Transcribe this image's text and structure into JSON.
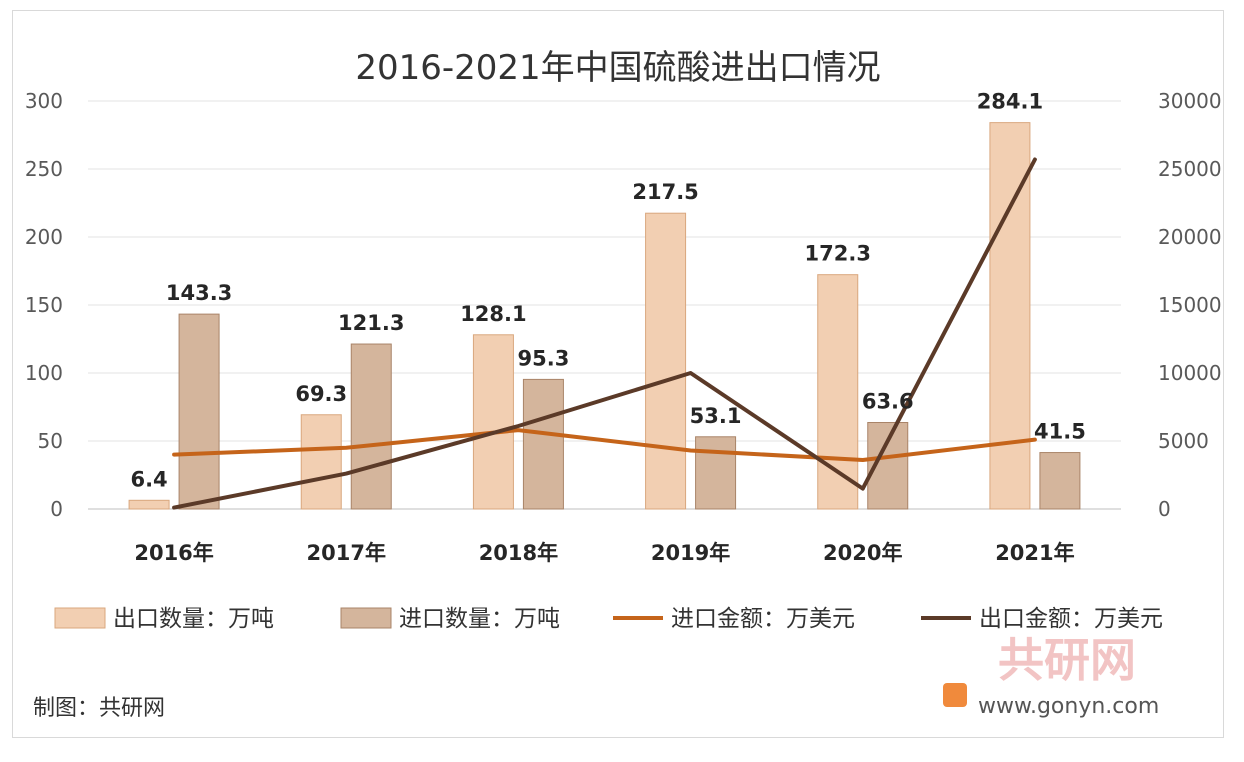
{
  "chart_data": {
    "type": "bar",
    "title": "2016-2021年中国硫酸进出口情况",
    "categories": [
      "2016年",
      "2017年",
      "2018年",
      "2019年",
      "2020年",
      "2021年"
    ],
    "y_left": {
      "min": 0,
      "max": 300,
      "step": 50,
      "ticks": [
        "0",
        "50",
        "100",
        "150",
        "200",
        "250",
        "300"
      ]
    },
    "y_right": {
      "min": 0,
      "max": 30000,
      "step": 5000,
      "ticks": [
        "0",
        "5000",
        "10000",
        "15000",
        "20000",
        "25000",
        "30000"
      ]
    },
    "grid": true,
    "legend_position": "bottom",
    "series": [
      {
        "name": "出口数量：万吨",
        "type": "bar",
        "axis": "left",
        "color": "#f2cfb2",
        "stroke": "#d9a77e",
        "values": [
          6.4,
          69.3,
          128.1,
          217.5,
          172.3,
          284.1
        ],
        "labels": [
          "6.4",
          "69.3",
          "128.1",
          "217.5",
          "172.3",
          "284.1"
        ]
      },
      {
        "name": "进口数量：万吨",
        "type": "bar",
        "axis": "left",
        "color": "#d4b59c",
        "stroke": "#a98468",
        "values": [
          143.3,
          121.3,
          95.3,
          53.1,
          63.6,
          41.5
        ],
        "labels": [
          "143.3",
          "121.3",
          "95.3",
          "53.1",
          "63.6",
          "41.5"
        ]
      },
      {
        "name": "进口金额：万美元",
        "type": "line",
        "axis": "right",
        "color": "#c5641a",
        "values": [
          4000,
          4500,
          5800,
          4300,
          3600,
          5100
        ]
      },
      {
        "name": "出口金额：万美元",
        "type": "line",
        "axis": "right",
        "color": "#5b3a28",
        "values": [
          100,
          2600,
          6100,
          10000,
          1500,
          25700
        ]
      }
    ]
  },
  "footer": {
    "credit": "制图：共研网",
    "watermark_brand": "共研网",
    "watermark_url": "www.gonyn.com"
  }
}
